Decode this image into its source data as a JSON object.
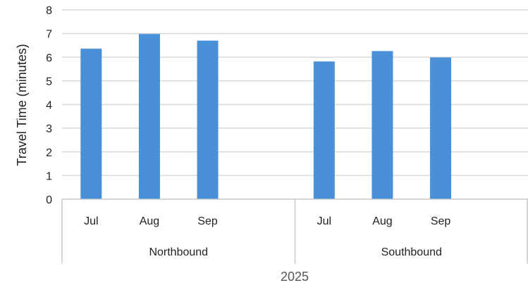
{
  "chart_data": {
    "type": "bar",
    "title": "",
    "ylabel": "Travel Time (minutes)",
    "xlabel": "2025",
    "ylim": [
      0,
      8
    ],
    "yticks": [
      "0",
      "1",
      "2",
      "3",
      "4",
      "5",
      "6",
      "7",
      "8"
    ],
    "grid": true,
    "bar_color": "#4A90D9",
    "groups": [
      {
        "name": "Northbound",
        "categories": [
          "Jul",
          "Aug",
          "Sep"
        ],
        "values": [
          6.36,
          6.98,
          6.7
        ]
      },
      {
        "name": "Southbound",
        "categories": [
          "Jul",
          "Aug",
          "Sep"
        ],
        "values": [
          5.82,
          6.26,
          5.99
        ]
      }
    ]
  }
}
